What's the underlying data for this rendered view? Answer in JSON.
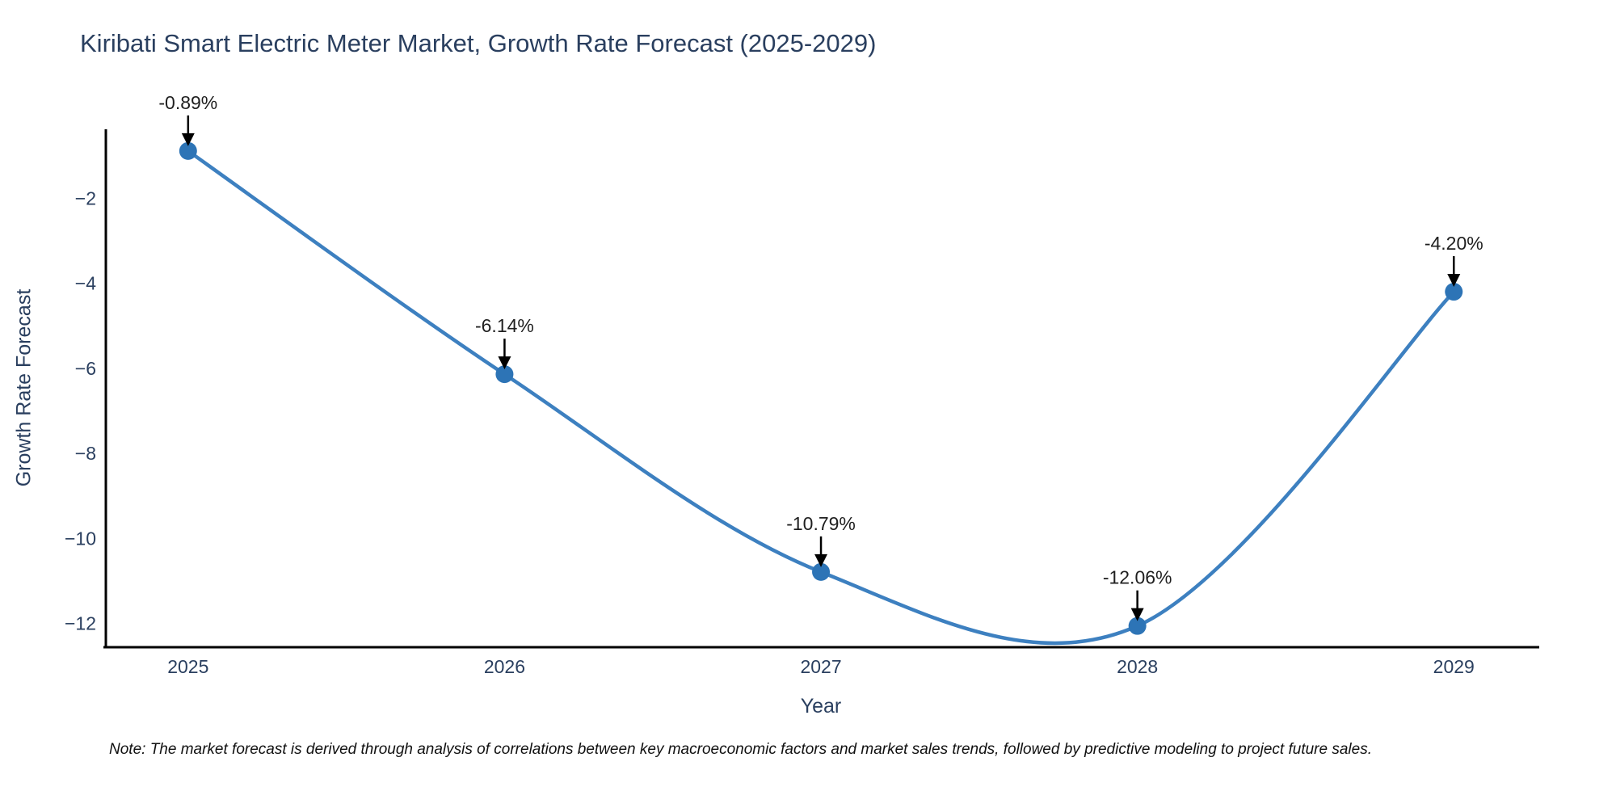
{
  "title": "Kiribati Smart Electric Meter Market, Growth Rate Forecast (2025-2029)",
  "note": "Note: The market forecast is derived through analysis of correlations between key macroeconomic factors and market sales trends, followed by predictive modeling to project future sales.",
  "chart_data": {
    "type": "line",
    "line_shape": "spline",
    "title": "Kiribati Smart Electric Meter Market, Growth Rate Forecast (2025-2029)",
    "xlabel": "Year",
    "ylabel": "Growth Rate Forecast",
    "x": [
      2025,
      2026,
      2027,
      2028,
      2029
    ],
    "y": [
      -0.89,
      -6.14,
      -10.79,
      -12.06,
      -4.2
    ],
    "point_labels": [
      "-0.89%",
      "-6.14%",
      "-10.79%",
      "-12.06%",
      "-4.20%"
    ],
    "x_tick_labels": [
      "2025",
      "2026",
      "2027",
      "2028",
      "2029"
    ],
    "y_tick_values": [
      -2,
      -4,
      -6,
      -8,
      -10,
      -12
    ],
    "y_tick_labels": [
      "−2",
      "−4",
      "−6",
      "−8",
      "−10",
      "−12"
    ],
    "xlim": [
      2024.74,
      2029.27
    ],
    "ylim": [
      -12.56,
      -0.38
    ],
    "grid": false,
    "legend_position": "none",
    "markers": true,
    "colors": {
      "line": "#3d80c0",
      "marker": "#2d74b6",
      "axis": "#000000",
      "tick_text": "#2a3f5f",
      "annotation_text": "#1f1f1f",
      "arrow": "#000000",
      "background": "#ffffff"
    }
  }
}
